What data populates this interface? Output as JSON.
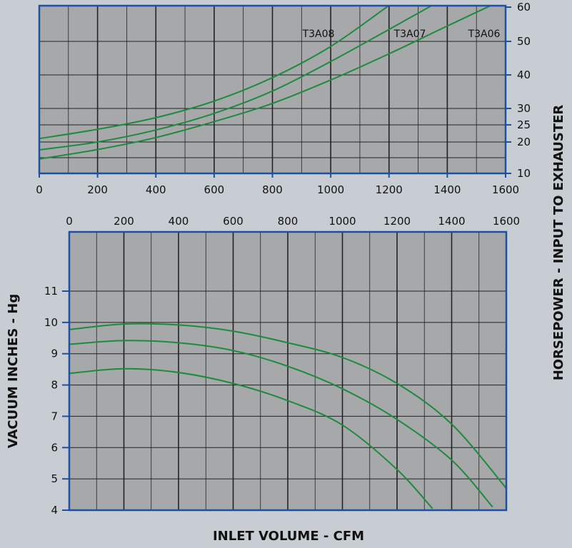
{
  "chart_data": [
    {
      "type": "line",
      "x_range": [
        0,
        1600
      ],
      "x_ticks": [
        "0",
        "200",
        "400",
        "600",
        "800",
        "1000",
        "1200",
        "1400",
        "1600"
      ],
      "y_right_ticks": [
        "10",
        "20",
        "25",
        "30",
        "40",
        "50",
        "60"
      ],
      "y_right_label": "HORSEPOWER - INPUT TO EXHAUSTER",
      "grid": true,
      "series": [
        {
          "name": "T3A08",
          "points": [
            [
              0,
              21
            ],
            [
              200,
              23.7
            ],
            [
              400,
              27.2
            ],
            [
              600,
              32.2
            ],
            [
              800,
              39.2
            ],
            [
              1000,
              48.5
            ],
            [
              1200,
              60.5
            ]
          ]
        },
        {
          "name": "T3A07",
          "points": [
            [
              0,
              17.5
            ],
            [
              200,
              20
            ],
            [
              400,
              23.5
            ],
            [
              600,
              28.5
            ],
            [
              800,
              35.2
            ],
            [
              1000,
              44
            ],
            [
              1200,
              53.5
            ],
            [
              1400,
              63
            ]
          ]
        },
        {
          "name": "T3A06",
          "points": [
            [
              0,
              14.6
            ],
            [
              200,
              17.6
            ],
            [
              400,
              21.3
            ],
            [
              600,
              26
            ],
            [
              800,
              31.5
            ],
            [
              1000,
              38.5
            ],
            [
              1200,
              46.3
            ],
            [
              1400,
              54.5
            ],
            [
              1600,
              62.5
            ]
          ]
        }
      ]
    },
    {
      "type": "line",
      "x_range": [
        0,
        1600
      ],
      "y_range": [
        4,
        12
      ],
      "x_ticks": [
        "0",
        "200",
        "400",
        "600",
        "800",
        "1000",
        "1200",
        "1400",
        "1600"
      ],
      "y_ticks": [
        "4",
        "5",
        "6",
        "7",
        "8",
        "9",
        "10",
        "11"
      ],
      "y_label": "VACUUM INCHES - Hg",
      "x_label": "INLET VOLUME - CFM",
      "grid": true,
      "series": [
        {
          "points": [
            [
              0,
              9.77
            ],
            [
              200,
              9.95
            ],
            [
              400,
              9.92
            ],
            [
              600,
              9.72
            ],
            [
              800,
              9.35
            ],
            [
              1000,
              8.88
            ],
            [
              1200,
              8.05
            ],
            [
              1400,
              6.75
            ],
            [
              1600,
              4.7
            ]
          ]
        },
        {
          "points": [
            [
              0,
              9.3
            ],
            [
              200,
              9.42
            ],
            [
              400,
              9.35
            ],
            [
              600,
              9.1
            ],
            [
              800,
              8.6
            ],
            [
              1000,
              7.88
            ],
            [
              1200,
              6.9
            ],
            [
              1400,
              5.6
            ],
            [
              1550,
              4.1
            ]
          ]
        },
        {
          "points": [
            [
              0,
              8.37
            ],
            [
              200,
              8.52
            ],
            [
              400,
              8.4
            ],
            [
              600,
              8.05
            ],
            [
              800,
              7.5
            ],
            [
              1000,
              6.72
            ],
            [
              1200,
              5.3
            ],
            [
              1330,
              4.05
            ]
          ]
        }
      ]
    }
  ]
}
